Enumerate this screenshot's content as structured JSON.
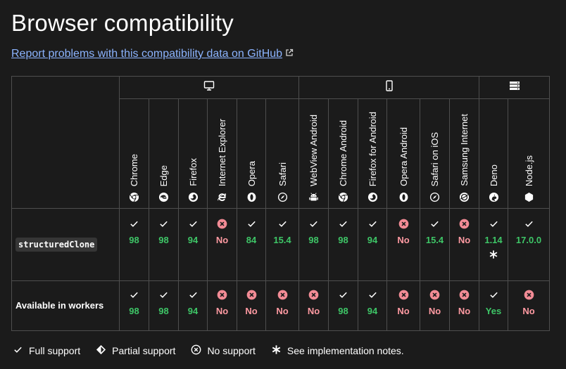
{
  "page": {
    "title": "Browser compatibility",
    "report_link": "Report problems with this compatibility data on GitHub"
  },
  "platforms": [
    {
      "name": "desktop",
      "icon": "desktop-icon",
      "span": 6
    },
    {
      "name": "mobile",
      "icon": "mobile-icon",
      "span": 6
    },
    {
      "name": "server",
      "icon": "server-icon",
      "span": 2
    }
  ],
  "browsers": [
    {
      "name": "Chrome",
      "icon": "chrome-icon"
    },
    {
      "name": "Edge",
      "icon": "edge-icon"
    },
    {
      "name": "Firefox",
      "icon": "firefox-icon"
    },
    {
      "name": "Internet Explorer",
      "icon": "ie-icon"
    },
    {
      "name": "Opera",
      "icon": "opera-icon"
    },
    {
      "name": "Safari",
      "icon": "safari-icon"
    },
    {
      "name": "WebView Android",
      "icon": "android-icon"
    },
    {
      "name": "Chrome Android",
      "icon": "chrome-icon"
    },
    {
      "name": "Firefox for Android",
      "icon": "firefox-icon"
    },
    {
      "name": "Opera Android",
      "icon": "opera-icon"
    },
    {
      "name": "Safari on iOS",
      "icon": "safari-icon"
    },
    {
      "name": "Samsung Internet",
      "icon": "samsung-internet-icon"
    },
    {
      "name": "Deno",
      "icon": "deno-icon"
    },
    {
      "name": "Node.js",
      "icon": "nodejs-icon"
    }
  ],
  "features": [
    {
      "name": "structuredClone",
      "is_code": true,
      "support": [
        {
          "status": "yes",
          "version": "98"
        },
        {
          "status": "yes",
          "version": "98"
        },
        {
          "status": "yes",
          "version": "94"
        },
        {
          "status": "no",
          "version": "No"
        },
        {
          "status": "yes",
          "version": "84"
        },
        {
          "status": "yes",
          "version": "15.4"
        },
        {
          "status": "yes",
          "version": "98"
        },
        {
          "status": "yes",
          "version": "98"
        },
        {
          "status": "yes",
          "version": "94"
        },
        {
          "status": "no",
          "version": "No"
        },
        {
          "status": "yes",
          "version": "15.4"
        },
        {
          "status": "no",
          "version": "No"
        },
        {
          "status": "yes",
          "version": "1.14",
          "note": true
        },
        {
          "status": "yes",
          "version": "17.0.0"
        }
      ]
    },
    {
      "name": "Available in workers",
      "is_code": false,
      "support": [
        {
          "status": "yes",
          "version": "98"
        },
        {
          "status": "yes",
          "version": "98"
        },
        {
          "status": "yes",
          "version": "94"
        },
        {
          "status": "no",
          "version": "No"
        },
        {
          "status": "no",
          "version": "No"
        },
        {
          "status": "no",
          "version": "No"
        },
        {
          "status": "no",
          "version": "No"
        },
        {
          "status": "yes",
          "version": "98"
        },
        {
          "status": "yes",
          "version": "94"
        },
        {
          "status": "no",
          "version": "No"
        },
        {
          "status": "no",
          "version": "No"
        },
        {
          "status": "no",
          "version": "No"
        },
        {
          "status": "yes",
          "version": "Yes"
        },
        {
          "status": "no",
          "version": "No"
        }
      ]
    }
  ],
  "legend": [
    {
      "icon": "check-icon",
      "label": "Full support"
    },
    {
      "icon": "partial-support-icon",
      "label": "Partial support"
    },
    {
      "icon": "no-support-icon",
      "label": "No support"
    },
    {
      "icon": "asterisk-icon",
      "label": "See implementation notes."
    }
  ],
  "colors": {
    "background": "#1b1b1b",
    "link": "#8cb4ff",
    "yes": "#3ec667",
    "no": "#ff9aa2",
    "no_icon_fill": "#f28b95",
    "border": "#4e4e4e"
  }
}
